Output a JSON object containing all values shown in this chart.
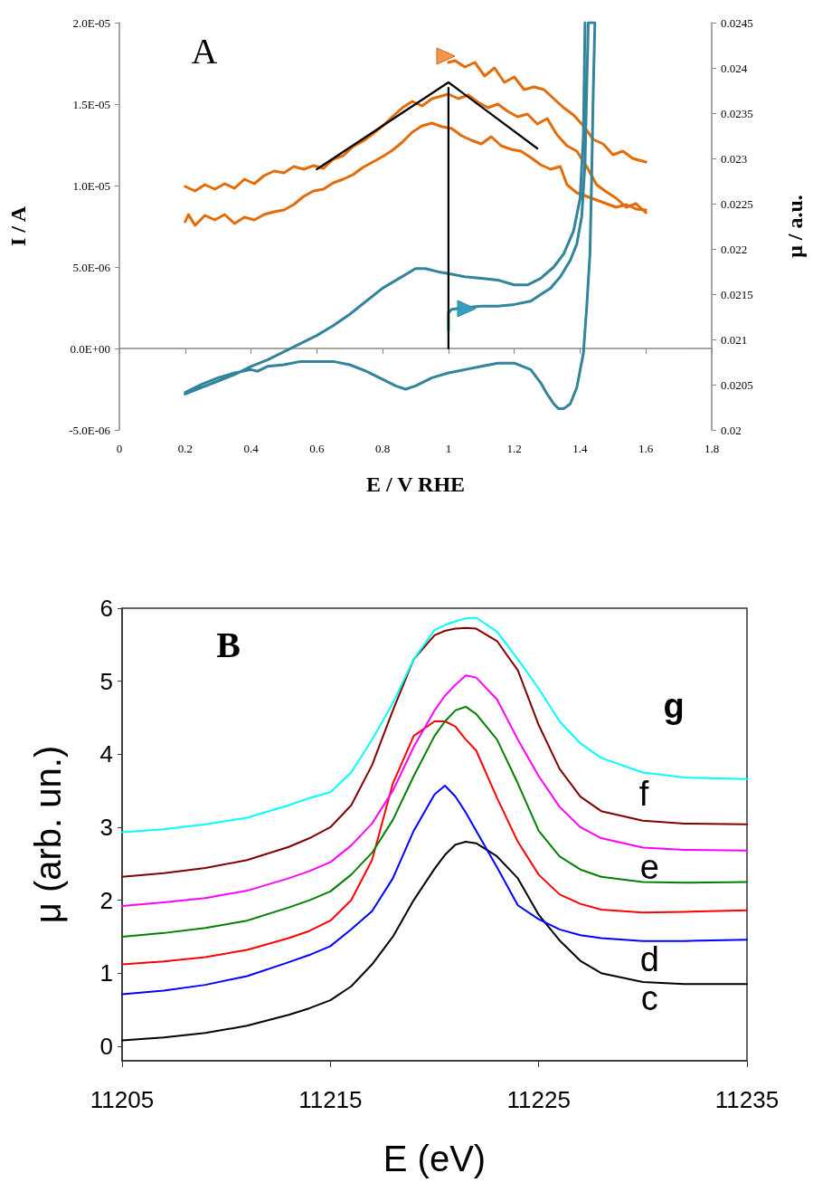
{
  "chart_data": [
    {
      "type": "line",
      "xlabel": "E / V RHE",
      "ylabel": "I / A",
      "y2label": "μ / a.u.",
      "annotations": [
        "A"
      ],
      "marker": "none",
      "xlim": [
        0,
        1.8
      ],
      "xticks": [
        0,
        0.2,
        0.4,
        0.6,
        0.8,
        1,
        1.2,
        1.4,
        1.6,
        1.8
      ],
      "ylim": [
        -5e-06,
        2e-05
      ],
      "yticks": [
        {
          "value": -5e-06,
          "label": "-5.0E-06"
        },
        {
          "value": 0,
          "label": "0.0E+00"
        },
        {
          "value": 5e-06,
          "label": "5.0E-06"
        },
        {
          "value": 1e-05,
          "label": "1.0E-05"
        },
        {
          "value": 1.5e-05,
          "label": "1.5E-05"
        },
        {
          "value": 2e-05,
          "label": "2.0E-05"
        }
      ],
      "y2lim": [
        0.02,
        0.0245
      ],
      "y2ticks": [
        0.02,
        0.0205,
        0.021,
        0.0215,
        0.022,
        0.0225,
        0.023,
        0.0235,
        0.024,
        0.0245
      ],
      "series": [
        {
          "color": "#e36c09",
          "axis": "y2",
          "x": [
            1.0,
            1.02,
            1.05,
            1.08,
            1.11,
            1.14,
            1.17,
            1.2,
            1.23,
            1.26,
            1.29,
            1.32,
            1.35,
            1.38,
            1.41,
            1.44,
            1.47,
            1.5,
            1.53,
            1.56,
            1.6
          ],
          "values": [
            0.02406,
            0.02408,
            0.02401,
            0.02406,
            0.02391,
            0.024,
            0.02384,
            0.0239,
            0.02376,
            0.02379,
            0.02376,
            0.02366,
            0.02356,
            0.02348,
            0.02336,
            0.02321,
            0.02316,
            0.02304,
            0.02308,
            0.023,
            0.02296
          ]
        },
        {
          "color": "#e36c09",
          "axis": "y2",
          "x": [
            0.2,
            0.23,
            0.26,
            0.29,
            0.32,
            0.35,
            0.38,
            0.41,
            0.44,
            0.47,
            0.5,
            0.53,
            0.56,
            0.59,
            0.62,
            0.65,
            0.68,
            0.71,
            0.74,
            0.77,
            0.8,
            0.83,
            0.86,
            0.89,
            0.92,
            0.95,
            0.98,
            1.0,
            1.03,
            1.06,
            1.09,
            1.12,
            1.15,
            1.18,
            1.21,
            1.24,
            1.27,
            1.3,
            1.33,
            1.36,
            1.39,
            1.42,
            1.45,
            1.48,
            1.51,
            1.54,
            1.57,
            1.6
          ],
          "values": [
            0.02269,
            0.02264,
            0.02271,
            0.02266,
            0.02272,
            0.02267,
            0.02277,
            0.02272,
            0.02281,
            0.02286,
            0.02284,
            0.02291,
            0.02288,
            0.02292,
            0.02289,
            0.02299,
            0.02303,
            0.02313,
            0.02319,
            0.02327,
            0.02336,
            0.02346,
            0.02356,
            0.02363,
            0.02358,
            0.02366,
            0.02369,
            0.02371,
            0.02366,
            0.0237,
            0.02362,
            0.02356,
            0.0236,
            0.02352,
            0.02346,
            0.02349,
            0.02338,
            0.02344,
            0.02326,
            0.02314,
            0.02308,
            0.02291,
            0.02271,
            0.02263,
            0.02256,
            0.02246,
            0.0225,
            0.0224
          ]
        },
        {
          "color": "#e36c09",
          "axis": "y2",
          "x": [
            0.2,
            0.21,
            0.23,
            0.26,
            0.29,
            0.32,
            0.35,
            0.38,
            0.41,
            0.44,
            0.47,
            0.5,
            0.53,
            0.56,
            0.59,
            0.62,
            0.65,
            0.68,
            0.71,
            0.74,
            0.77,
            0.8,
            0.83,
            0.86,
            0.89,
            0.92,
            0.95,
            0.98,
            1.01,
            1.04,
            1.07,
            1.1,
            1.13,
            1.16,
            1.19,
            1.22,
            1.25,
            1.28,
            1.31,
            1.34,
            1.36,
            1.39,
            1.42,
            1.45,
            1.48,
            1.51,
            1.54,
            1.57,
            1.6
          ],
          "values": [
            0.0223,
            0.02238,
            0.02226,
            0.02237,
            0.02232,
            0.02238,
            0.02228,
            0.02235,
            0.02232,
            0.02238,
            0.02241,
            0.02243,
            0.02249,
            0.02258,
            0.02264,
            0.02266,
            0.02273,
            0.02277,
            0.02282,
            0.0229,
            0.02296,
            0.02302,
            0.02309,
            0.02318,
            0.02329,
            0.02336,
            0.02339,
            0.02335,
            0.02333,
            0.02325,
            0.0232,
            0.02316,
            0.02324,
            0.02314,
            0.0231,
            0.02308,
            0.02301,
            0.02293,
            0.02288,
            0.02291,
            0.02271,
            0.02262,
            0.02258,
            0.02254,
            0.0225,
            0.02246,
            0.02249,
            0.02244,
            0.02243
          ]
        },
        {
          "color": "#31849b",
          "axis": "y",
          "x": [
            1.0,
            1.0,
            1.01,
            1.05,
            1.1,
            1.15,
            1.2,
            1.25,
            1.28,
            1.31,
            1.34,
            1.37,
            1.39,
            1.405,
            1.415,
            1.42,
            1.425,
            1.445,
            1.44,
            1.435,
            1.43,
            1.42,
            1.41,
            1.39,
            1.37,
            1.35,
            1.335,
            1.32,
            1.3,
            1.28,
            1.25,
            1.2,
            1.15,
            1.1,
            1.05,
            1.0,
            0.95,
            0.9,
            0.87,
            0.84,
            0.8,
            0.75,
            0.7,
            0.65,
            0.6,
            0.55,
            0.5,
            0.45,
            0.42,
            0.4,
            0.35,
            0.3,
            0.25,
            0.2,
            0.2,
            0.25,
            0.3,
            0.35,
            0.4,
            0.45,
            0.5,
            0.55,
            0.6,
            0.65,
            0.7,
            0.75,
            0.8,
            0.85,
            0.9,
            0.93,
            0.97,
            1.0,
            1.05,
            1.1,
            1.15,
            1.2,
            1.24,
            1.28,
            1.32,
            1.35,
            1.38,
            1.4,
            1.41,
            1.415
          ],
          "values": [
            1.1e-06,
            2.2e-06,
            2.4e-06,
            2.5e-06,
            2.6e-06,
            2.6e-06,
            2.7e-06,
            2.9e-06,
            3.3e-06,
            3.7e-06,
            4.4e-06,
            5.4e-06,
            6.4e-06,
            8.1e-06,
            1.14e-05,
            1.58e-05,
            2e-05,
            2e-05,
            1.58e-05,
            1.03e-05,
            5.8e-06,
            2.5e-06,
            -3e-07,
            -2.4e-06,
            -3.4e-06,
            -3.7e-06,
            -3.7e-06,
            -3.4e-06,
            -2.8e-06,
            -2.1e-06,
            -1.3e-06,
            -9e-07,
            -9e-07,
            -1.1e-06,
            -1.3e-06,
            -1.5e-06,
            -1.8e-06,
            -2.3e-06,
            -2.5e-06,
            -2.3e-06,
            -1.9e-06,
            -1.4e-06,
            -1e-06,
            -8e-07,
            -8e-07,
            -8e-07,
            -1e-06,
            -1.1e-06,
            -1.4e-06,
            -1.3e-06,
            -1.5e-06,
            -1.8e-06,
            -2.2e-06,
            -2.7e-06,
            -2.8e-06,
            -2.4e-06,
            -2e-06,
            -1.6e-06,
            -1.1e-06,
            -7e-07,
            -2e-07,
            3e-07,
            8e-07,
            1.4e-06,
            2.1e-06,
            2.9e-06,
            3.7e-06,
            4.3e-06,
            4.9e-06,
            4.9e-06,
            4.7e-06,
            4.6e-06,
            4.4e-06,
            4.3e-06,
            4.2e-06,
            3.9e-06,
            3.9e-06,
            4.3e-06,
            5e-06,
            5.8e-06,
            7.2e-06,
            9.2e-06,
            1.31e-05,
            2e-05
          ]
        },
        {
          "color": "#000000",
          "axis": "y2",
          "x": [
            0.6,
            1.0,
            1.27
          ],
          "values": [
            0.02288,
            0.02384,
            0.02311
          ]
        },
        {
          "color": "#000000",
          "axis": "y",
          "x": [
            1.0,
            1.0
          ],
          "values": [
            0,
            1.6e-05
          ]
        }
      ]
    },
    {
      "type": "line",
      "xlabel": "E (eV)",
      "ylabel": "μ (arb. un.)",
      "marker": "none",
      "annotations": [
        "B",
        "g",
        "f",
        "e",
        "d",
        "c"
      ],
      "xlim": [
        11205,
        11235
      ],
      "xticks": [
        11205,
        11215,
        11225,
        11235
      ],
      "ylim": [
        -0.2,
        6
      ],
      "yticks": [
        0,
        1,
        2,
        3,
        4,
        5,
        6
      ],
      "x": [
        11205,
        11207,
        11209,
        11211,
        11213,
        11214,
        11215,
        11216,
        11217,
        11218,
        11219,
        11220,
        11220.5,
        11221,
        11221.5,
        11222,
        11223,
        11224,
        11225,
        11226,
        11227,
        11228,
        11230,
        11232,
        11235
      ],
      "series": [
        {
          "color": "#000000",
          "values": [
            0.08,
            0.12,
            0.18,
            0.28,
            0.43,
            0.52,
            0.63,
            0.82,
            1.12,
            1.5,
            2.0,
            2.43,
            2.62,
            2.76,
            2.8,
            2.78,
            2.6,
            2.3,
            1.8,
            1.45,
            1.17,
            1.0,
            0.88,
            0.85,
            0.85
          ]
        },
        {
          "color": "#0000ff",
          "values": [
            0.71,
            0.76,
            0.84,
            0.96,
            1.15,
            1.25,
            1.37,
            1.6,
            1.85,
            2.3,
            2.95,
            3.45,
            3.57,
            3.42,
            3.2,
            2.95,
            2.45,
            1.93,
            1.74,
            1.6,
            1.52,
            1.48,
            1.44,
            1.44,
            1.46
          ]
        },
        {
          "color": "#ff0000",
          "values": [
            1.12,
            1.16,
            1.22,
            1.32,
            1.48,
            1.58,
            1.72,
            2.0,
            2.55,
            3.6,
            4.25,
            4.45,
            4.45,
            4.38,
            4.2,
            4.05,
            3.4,
            2.8,
            2.35,
            2.08,
            1.95,
            1.87,
            1.83,
            1.84,
            1.86
          ]
        },
        {
          "color": "#008000",
          "values": [
            1.5,
            1.55,
            1.62,
            1.72,
            1.9,
            2.0,
            2.12,
            2.35,
            2.65,
            3.1,
            3.7,
            4.25,
            4.45,
            4.6,
            4.65,
            4.55,
            4.2,
            3.6,
            2.95,
            2.6,
            2.42,
            2.32,
            2.25,
            2.24,
            2.25
          ]
        },
        {
          "color": "#ff00ff",
          "values": [
            1.92,
            1.97,
            2.03,
            2.13,
            2.3,
            2.4,
            2.52,
            2.75,
            3.05,
            3.5,
            4.1,
            4.6,
            4.8,
            4.95,
            5.08,
            5.05,
            4.75,
            4.2,
            3.7,
            3.28,
            3.0,
            2.85,
            2.72,
            2.69,
            2.68
          ]
        },
        {
          "color": "#800000",
          "values": [
            2.32,
            2.37,
            2.44,
            2.55,
            2.73,
            2.85,
            3.0,
            3.3,
            3.85,
            4.6,
            5.3,
            5.63,
            5.69,
            5.72,
            5.73,
            5.72,
            5.55,
            5.15,
            4.4,
            3.8,
            3.42,
            3.22,
            3.09,
            3.05,
            3.04
          ]
        },
        {
          "color": "#00ffff",
          "values": [
            2.93,
            2.97,
            3.04,
            3.13,
            3.3,
            3.4,
            3.48,
            3.75,
            4.2,
            4.7,
            5.3,
            5.7,
            5.77,
            5.82,
            5.86,
            5.87,
            5.68,
            5.3,
            4.9,
            4.45,
            4.15,
            3.95,
            3.75,
            3.68,
            3.66
          ]
        }
      ]
    }
  ]
}
